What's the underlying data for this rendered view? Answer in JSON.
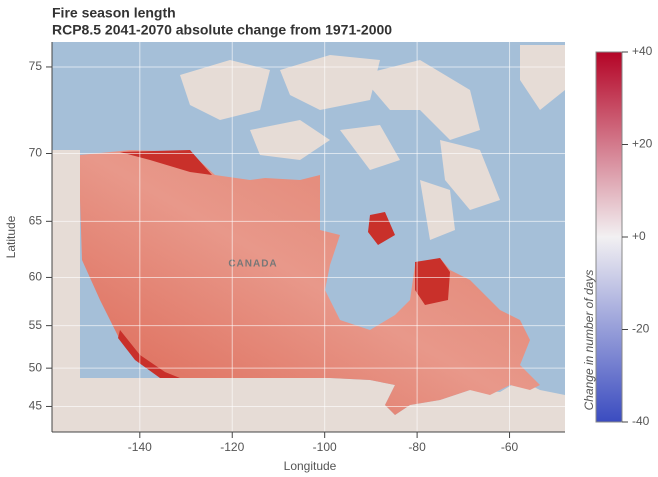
{
  "chart_data": {
    "type": "map",
    "title": "Fire season length",
    "subtitle": "RCP8.5 2041-2070 absolute change from 1971-2000",
    "xlabel": "Longitude",
    "ylabel": "Latitude",
    "projection": "mercator",
    "xlim": [
      -159,
      -48
    ],
    "xticks": [
      -140,
      -120,
      -100,
      -80,
      -60
    ],
    "ylim": [
      41.4,
      76.2
    ],
    "yticks": [
      45,
      50,
      55,
      60,
      65,
      70,
      75
    ],
    "grid": true,
    "map_label": "CANADA",
    "colorbar": {
      "label": "Change in number of days",
      "lim": [
        -40,
        40
      ],
      "ticks": [
        {
          "value": 40,
          "label": "+40"
        },
        {
          "value": 20,
          "label": "+20"
        },
        {
          "value": 0,
          "label": "+0"
        },
        -20,
        -40
      ],
      "colors": [
        "#3b4cc0",
        "#f2f0f2",
        "#b40426"
      ]
    }
  }
}
